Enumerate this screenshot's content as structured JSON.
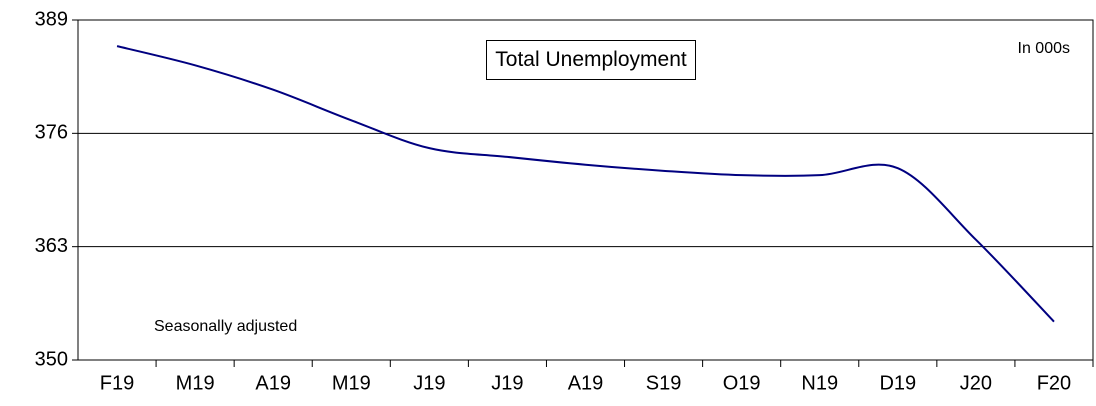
{
  "chart_data": {
    "type": "line",
    "title": "Total Unemployment",
    "annotations": [
      "In 000s",
      "Seasonally adjusted"
    ],
    "categories": [
      "F19",
      "M19",
      "A19",
      "M19",
      "J19",
      "J19",
      "A19",
      "S19",
      "O19",
      "N19",
      "D19",
      "J20",
      "F20"
    ],
    "series": [
      {
        "name": "Total Unemployment",
        "color": "#000080",
        "values": [
          386.0,
          383.8,
          381.0,
          377.5,
          374.3,
          373.3,
          372.4,
          371.7,
          371.2,
          371.2,
          372.0,
          363.8,
          354.4
        ]
      }
    ],
    "ylim": [
      350,
      389
    ],
    "yticks": [
      350,
      363,
      376,
      389
    ],
    "grid": true
  }
}
